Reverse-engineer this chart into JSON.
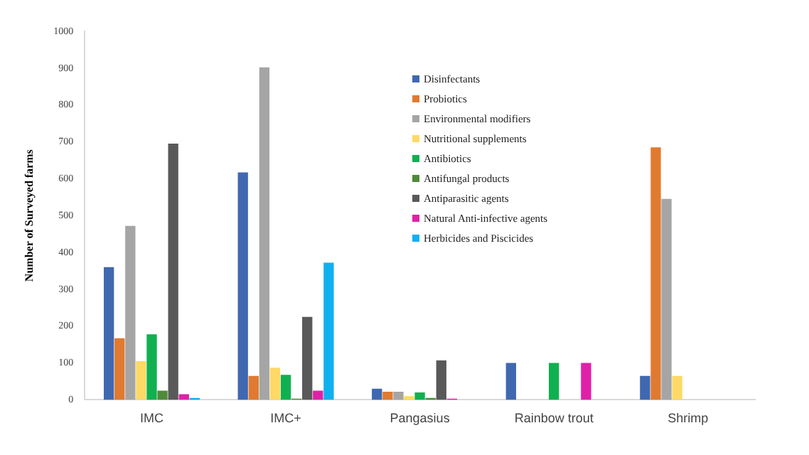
{
  "chart_data": {
    "type": "bar",
    "ylabel": "Number of Surveyed farms",
    "categories": [
      "IMC",
      "IMC+",
      "Pangasius",
      "Rainbow trout",
      "Shrimp"
    ],
    "ylim": [
      0,
      1000
    ],
    "yticks": [
      0,
      100,
      200,
      300,
      400,
      500,
      600,
      700,
      800,
      900,
      1000
    ],
    "grid": false,
    "legend": "top",
    "series": [
      {
        "name": "Disinfectants",
        "color": "#4068b0",
        "values": [
          360,
          617,
          30,
          100,
          65
        ]
      },
      {
        "name": "Probiotics",
        "color": "#e07a30",
        "values": [
          167,
          65,
          22,
          0,
          685
        ]
      },
      {
        "name": "Environmental modifiers",
        "color": "#a5a5a5",
        "values": [
          472,
          902,
          22,
          0,
          545
        ]
      },
      {
        "name": "Nutritional supplements",
        "color": "#ffd966",
        "values": [
          105,
          87,
          10,
          0,
          65
        ]
      },
      {
        "name": "Antibiotics",
        "color": "#10b050",
        "values": [
          178,
          68,
          20,
          100,
          0
        ]
      },
      {
        "name": "Antifungal products",
        "color": "#4e8a3a",
        "values": [
          25,
          3,
          5,
          0,
          0
        ]
      },
      {
        "name": "Antiparasitic agents",
        "color": "#595959",
        "values": [
          695,
          225,
          107,
          0,
          0
        ]
      },
      {
        "name": "Natural Anti-infective agents",
        "color": "#e020a8",
        "values": [
          15,
          25,
          3,
          100,
          0
        ]
      },
      {
        "name": "Herbicides and Piscicides",
        "color": "#10b0f0",
        "values": [
          5,
          372,
          0,
          0,
          0
        ]
      }
    ]
  }
}
